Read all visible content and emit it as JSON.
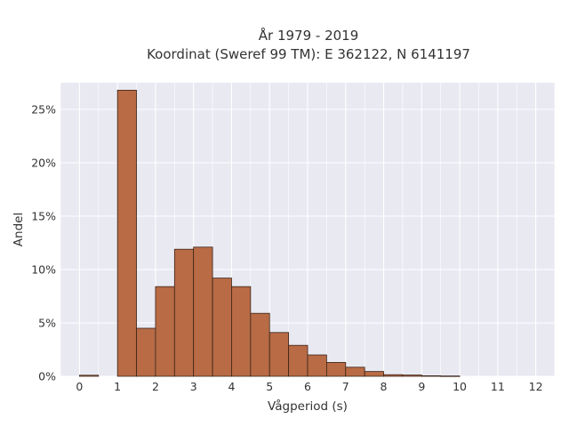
{
  "chart_data": {
    "type": "bar",
    "title": "År 1979 - 2019",
    "subtitle": "Koordinat (Sweref 99 TM): E 362122, N 6141197",
    "xlabel": "Vågperiod (s)",
    "ylabel": "Andel",
    "xlim": [
      -0.5,
      12.5
    ],
    "ylim": [
      0,
      27.5
    ],
    "x_ticks": [
      0,
      1,
      2,
      3,
      4,
      5,
      6,
      7,
      8,
      9,
      10,
      11,
      12
    ],
    "x_tick_labels": [
      "0",
      "1",
      "2",
      "3",
      "4",
      "5",
      "6",
      "7",
      "8",
      "9",
      "10",
      "11",
      "12"
    ],
    "y_ticks": [
      0,
      5,
      10,
      15,
      20,
      25
    ],
    "y_tick_labels": [
      "0%",
      "5%",
      "10%",
      "15%",
      "20%",
      "25%"
    ],
    "grid": true,
    "legend": "none",
    "bar_color": "#b86b45",
    "edge_color": "#3a2418",
    "background_color": "#e9e9f2",
    "bins": [
      {
        "start": 0.0,
        "end": 0.5,
        "value": 0.1
      },
      {
        "start": 1.0,
        "end": 1.5,
        "value": 26.8
      },
      {
        "start": 1.5,
        "end": 2.0,
        "value": 4.5
      },
      {
        "start": 2.0,
        "end": 2.5,
        "value": 8.4
      },
      {
        "start": 2.5,
        "end": 3.0,
        "value": 11.9
      },
      {
        "start": 3.0,
        "end": 3.5,
        "value": 12.1
      },
      {
        "start": 3.5,
        "end": 4.0,
        "value": 9.2
      },
      {
        "start": 4.0,
        "end": 4.5,
        "value": 8.4
      },
      {
        "start": 4.5,
        "end": 5.0,
        "value": 5.9
      },
      {
        "start": 5.0,
        "end": 5.5,
        "value": 4.1
      },
      {
        "start": 5.5,
        "end": 6.0,
        "value": 2.9
      },
      {
        "start": 6.0,
        "end": 6.5,
        "value": 2.0
      },
      {
        "start": 6.5,
        "end": 7.0,
        "value": 1.3
      },
      {
        "start": 7.0,
        "end": 7.5,
        "value": 0.85
      },
      {
        "start": 7.5,
        "end": 8.0,
        "value": 0.45
      },
      {
        "start": 8.0,
        "end": 8.5,
        "value": 0.15
      },
      {
        "start": 8.5,
        "end": 9.0,
        "value": 0.12
      },
      {
        "start": 9.0,
        "end": 9.5,
        "value": 0.05
      },
      {
        "start": 9.5,
        "end": 10.0,
        "value": 0.03
      }
    ]
  }
}
